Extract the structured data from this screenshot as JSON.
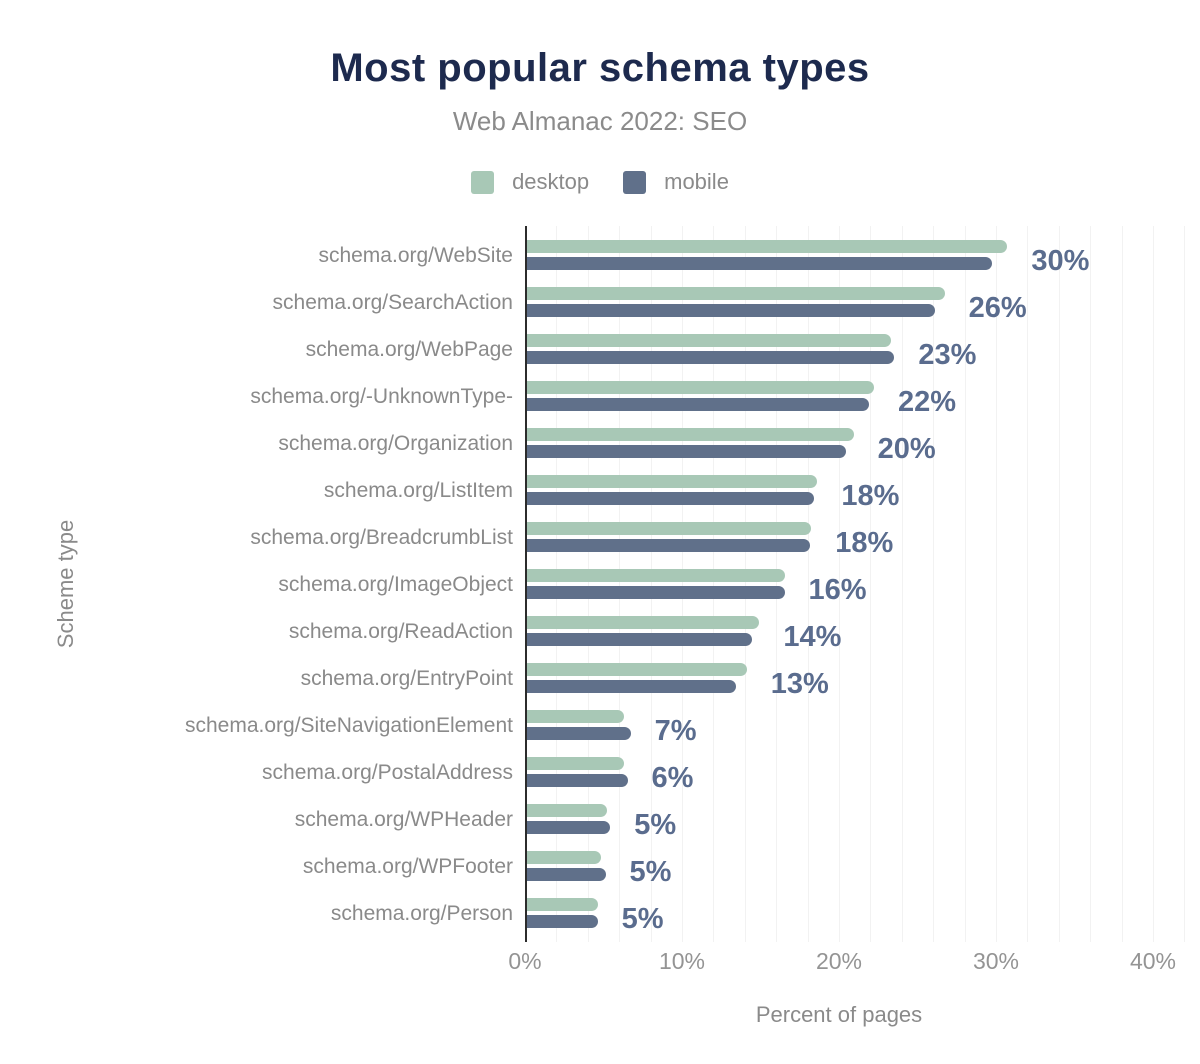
{
  "chart_data": {
    "type": "bar",
    "orientation": "horizontal",
    "title": "Most popular schema types",
    "subtitle": "Web Almanac 2022: SEO",
    "xlabel": "Percent of pages",
    "ylabel": "Scheme type",
    "xlim": [
      0,
      40
    ],
    "xtick_values": [
      0,
      10,
      20,
      30,
      40
    ],
    "xtick_labels": [
      "0%",
      "10%",
      "20%",
      "30%",
      "40%"
    ],
    "grid_step_percent": 2,
    "grid": true,
    "legend_position": "top",
    "categories": [
      "schema.org/WebSite",
      "schema.org/SearchAction",
      "schema.org/WebPage",
      "schema.org/-UnknownType-",
      "schema.org/Organization",
      "schema.org/ListItem",
      "schema.org/BreadcrumbList",
      "schema.org/ImageObject",
      "schema.org/ReadAction",
      "schema.org/EntryPoint",
      "schema.org/SiteNavigationElement",
      "schema.org/PostalAddress",
      "schema.org/WPHeader",
      "schema.org/WPFooter",
      "schema.org/Person"
    ],
    "series": [
      {
        "name": "desktop",
        "color": "#a8c8b6",
        "values": [
          30.6,
          26.6,
          23.2,
          22.1,
          20.8,
          18.5,
          18.1,
          16.4,
          14.8,
          14.0,
          6.2,
          6.2,
          5.1,
          4.7,
          4.5
        ]
      },
      {
        "name": "mobile",
        "color": "#60708a",
        "values": [
          29.6,
          26.0,
          23.4,
          21.8,
          20.3,
          18.3,
          18.0,
          16.4,
          14.3,
          13.3,
          6.6,
          6.4,
          5.3,
          5.0,
          4.5
        ]
      }
    ],
    "value_labels": [
      "30%",
      "26%",
      "23%",
      "22%",
      "20%",
      "18%",
      "18%",
      "16%",
      "14%",
      "13%",
      "7%",
      "6%",
      "5%",
      "5%",
      "5%"
    ]
  },
  "colors": {
    "title": "#1d2a4e",
    "subtitle": "#8b8b8b",
    "axis_labels": "#8a8a8a",
    "tick_labels": "#949494",
    "value_labels": "#5a6c8e",
    "desktop": "#a8c8b6",
    "mobile": "#60708a",
    "gridline": "#f2f2f2",
    "axis_line": "#2c2c2c",
    "background": "#ffffff"
  }
}
